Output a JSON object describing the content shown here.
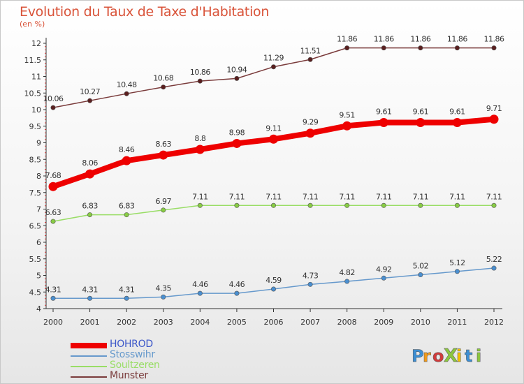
{
  "title": "Evolution du Taux de Taxe d'Habitation",
  "subtitle": "(en %)",
  "logo": {
    "text": "ProXiti",
    "colors": [
      "#3c8fd4",
      "#f19a1a",
      "#d23b3b",
      "#8cc63f",
      "#f3c000",
      "#3c8fd4",
      "#8cc63f"
    ]
  },
  "chart_data": {
    "type": "line",
    "title": "Evolution du Taux de Taxe d'Habitation",
    "ylabel": "(en %)",
    "xlabel": "",
    "ylim": [
      4,
      12
    ],
    "yticks": [
      "4",
      "4.5",
      "5",
      "5.5",
      "6",
      "6.5",
      "7",
      "7.5",
      "8",
      "8.5",
      "9",
      "9.5",
      "10",
      "10.5",
      "11",
      "11.5",
      "12"
    ],
    "ytick_values": [
      4,
      4.5,
      5,
      5.5,
      6,
      6.5,
      7,
      7.5,
      8,
      8.5,
      9,
      9.5,
      10,
      10.5,
      11,
      11.5,
      12
    ],
    "categories": [
      "2000",
      "2001",
      "2002",
      "2003",
      "2004",
      "2005",
      "2006",
      "2007",
      "2008",
      "2009",
      "2010",
      "2011",
      "2012"
    ],
    "legend_position": "bottom-left",
    "grid": false,
    "series": [
      {
        "name": "HOHROD",
        "color": "#ee0000",
        "marker_color": "#ee0000",
        "legend_color": "#3c57c9",
        "values": [
          7.68,
          8.06,
          8.46,
          8.63,
          8.8,
          8.98,
          9.11,
          9.29,
          9.51,
          9.61,
          9.61,
          9.61,
          9.71
        ],
        "labels": [
          "7.68",
          "8.06",
          "8.46",
          "8.63",
          "8.8",
          "8.98",
          "9.11",
          "9.29",
          "9.51",
          "9.61",
          "9.61",
          "9.61",
          "9.71"
        ]
      },
      {
        "name": "Stosswihr",
        "color": "#6699cc",
        "marker_color": "#4a8fd0",
        "legend_color": "#6699cc",
        "values": [
          4.31,
          4.31,
          4.31,
          4.35,
          4.46,
          4.46,
          4.59,
          4.73,
          4.82,
          4.92,
          5.02,
          5.12,
          5.22
        ],
        "labels": [
          "4.31",
          "4.31",
          "4.31",
          "4.35",
          "4.46",
          "4.46",
          "4.59",
          "4.73",
          "4.82",
          "4.92",
          "5.02",
          "5.12",
          "5.22"
        ]
      },
      {
        "name": "Soultzeren",
        "color": "#99dd66",
        "marker_color": "#88cc44",
        "legend_color": "#99dd66",
        "values": [
          6.63,
          6.83,
          6.83,
          6.97,
          7.11,
          7.11,
          7.11,
          7.11,
          7.11,
          7.11,
          7.11,
          7.11,
          7.11
        ],
        "labels": [
          "6.63",
          "6.83",
          "6.83",
          "6.97",
          "7.11",
          "7.11",
          "7.11",
          "7.11",
          "7.11",
          "7.11",
          "7.11",
          "7.11",
          "7.11"
        ]
      },
      {
        "name": "Munster",
        "color": "#7a3b3b",
        "marker_color": "#5a1f1f",
        "legend_color": "#7a3b3b",
        "values": [
          10.06,
          10.27,
          10.48,
          10.68,
          10.86,
          10.94,
          11.29,
          11.51,
          11.86,
          11.86,
          11.86,
          11.86,
          11.86
        ],
        "labels": [
          "10.06",
          "10.27",
          "10.48",
          "10.68",
          "10.86",
          "10.94",
          "11.29",
          "11.51",
          "11.86",
          "11.86",
          "11.86",
          "11.86",
          "11.86"
        ]
      }
    ]
  }
}
